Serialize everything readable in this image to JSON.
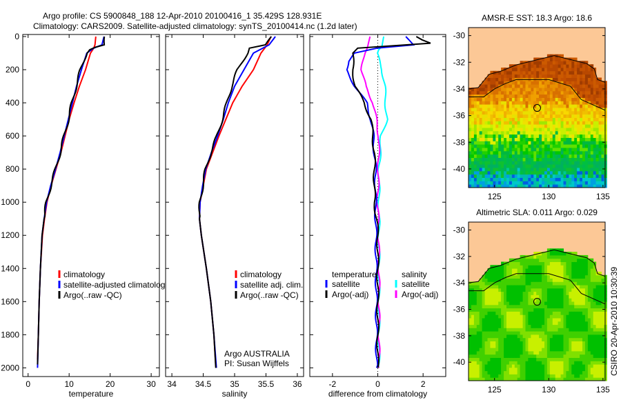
{
  "title_line1": "Argo profile: CS 5900848_188 12-Apr-2010 20100416_1 35.429S 128.931E",
  "title_line2": "Climatology: CARS2009. Satellite-adjusted climatology: synTS_20100414.nc (1.2d later)",
  "credit": "CSIRO 20-Apr-2010 10:30:39",
  "colors": {
    "red": "#ff0000",
    "blue": "#0000ff",
    "black": "#000000",
    "cyan": "#00ffff",
    "magenta": "#ff00ff",
    "land": "#fcc896"
  },
  "chart_data": [
    {
      "type": "line",
      "xlabel": "temperature",
      "xlim": [
        -1.3,
        32
      ],
      "xticks": [
        0,
        10,
        20,
        30
      ],
      "ylim": [
        0,
        2065
      ],
      "yticks": [
        0,
        200,
        400,
        600,
        800,
        1000,
        1200,
        1400,
        1600,
        1800,
        2000
      ],
      "y_reversed": true,
      "legend": [
        "climatology",
        "satellite-adjusted climatology",
        "Argo(..raw -QC)"
      ],
      "series": [
        {
          "name": "climatology",
          "color": "#ff0000",
          "depth": [
            0,
            50,
            70,
            100,
            200,
            300,
            400,
            500,
            600,
            700,
            800,
            900,
            1000,
            1100,
            1200,
            1400,
            1600,
            1800,
            1950
          ],
          "values": [
            16.5,
            16.3,
            16,
            15.2,
            14,
            12.5,
            11.2,
            10,
            9,
            8,
            6.8,
            5.6,
            4.6,
            4,
            3.5,
            3,
            2.7,
            2.5,
            2.3
          ]
        },
        {
          "name": "satellite-adjusted climatology",
          "color": "#0000ff",
          "depth": [
            0,
            50,
            70,
            100,
            200,
            300,
            400,
            500,
            600,
            700,
            800,
            900,
            1000,
            1100,
            1200,
            1400,
            1600,
            1800,
            2000
          ],
          "values": [
            18.5,
            18,
            16,
            14.3,
            13,
            11.8,
            10.8,
            9.8,
            8.8,
            7.8,
            6.7,
            5.5,
            4.5,
            3.9,
            3.4,
            3,
            2.7,
            2.5,
            2.3
          ]
        },
        {
          "name": "Argo(..raw -QC)",
          "color": "#000000",
          "depth": [
            0,
            50,
            65,
            80,
            100,
            200,
            300,
            400,
            500,
            600,
            700,
            800,
            900,
            1000,
            1100,
            1200,
            1400,
            1600,
            1800,
            1980
          ],
          "values": [
            18.8,
            18.7,
            16.5,
            15.2,
            14.2,
            12.8,
            11.7,
            10.7,
            9.8,
            8.8,
            7.8,
            6.7,
            5.5,
            4.5,
            3.9,
            3.4,
            3,
            2.7,
            2.5,
            2.3
          ]
        }
      ]
    },
    {
      "type": "line",
      "xlabel": "salinity",
      "xlim": [
        33.9,
        36.1
      ],
      "xticks": [
        34,
        34.5,
        35,
        35.5,
        36
      ],
      "ylim": [
        0,
        2065
      ],
      "y_reversed": true,
      "legend": [
        "climatology",
        "satellite adj. clim.",
        "Argo(..raw -QC)"
      ],
      "annotation": [
        "Argo AUSTRALIA",
        "PI: Susan Wijffels"
      ],
      "series": [
        {
          "name": "climatology",
          "color": "#ff0000",
          "depth": [
            0,
            50,
            100,
            200,
            300,
            400,
            500,
            600,
            700,
            800,
            900,
            1000,
            1100,
            1200,
            1400,
            1600,
            1800,
            1990
          ],
          "values": [
            35.58,
            35.52,
            35.42,
            35.3,
            35.12,
            34.97,
            34.86,
            34.75,
            34.65,
            34.55,
            34.5,
            34.45,
            34.44,
            34.47,
            34.55,
            34.62,
            34.67,
            34.7
          ]
        },
        {
          "name": "satellite adj. clim.",
          "color": "#0000ff",
          "depth": [
            0,
            50,
            100,
            200,
            300,
            400,
            500,
            600,
            700,
            800,
            900,
            1000,
            1100,
            1200,
            1400,
            1600,
            1800,
            2000
          ],
          "values": [
            35.65,
            35.55,
            35.3,
            35.15,
            35.0,
            34.9,
            34.82,
            34.73,
            34.63,
            34.54,
            34.49,
            34.45,
            34.44,
            34.47,
            34.55,
            34.62,
            34.67,
            34.71
          ]
        },
        {
          "name": "Argo(..raw -QC)",
          "color": "#000000",
          "depth": [
            0,
            50,
            70,
            100,
            200,
            300,
            400,
            500,
            600,
            700,
            800,
            900,
            1000,
            1100,
            1200,
            1400,
            1600,
            1800,
            2000
          ],
          "values": [
            35.6,
            35.5,
            35.22,
            35.2,
            35.05,
            34.95,
            34.88,
            34.8,
            34.72,
            34.62,
            34.54,
            34.49,
            34.45,
            34.44,
            34.47,
            34.55,
            34.62,
            34.67,
            34.7
          ]
        }
      ]
    },
    {
      "type": "line",
      "xlabel": "difference from climatology",
      "xlim": [
        -3,
        3
      ],
      "xticks": [
        -2,
        0,
        2
      ],
      "ylim": [
        0,
        2065
      ],
      "y_reversed": true,
      "legend_left": {
        "title": "temperature",
        "items": [
          "satellite",
          "Argo(-adj)"
        ]
      },
      "legend_right": {
        "title": "salinity",
        "items": [
          "satellite",
          "Argo(-adj)"
        ]
      },
      "series": [
        {
          "name": "temperature satellite",
          "color": "#0000ff",
          "depth": [
            0,
            50,
            70,
            100,
            150,
            200,
            300,
            400,
            500,
            600,
            800,
            1000,
            1200,
            1600,
            2000
          ],
          "values": [
            1.2,
            1.6,
            0.0,
            -1.0,
            -1.3,
            -1.4,
            -1.0,
            -0.5,
            -0.3,
            -0.2,
            -0.1,
            -0.1,
            -0.08,
            -0.06,
            -0.05
          ]
        },
        {
          "name": "temperature Argo(-adj)",
          "color": "#000000",
          "depth": [
            0,
            40,
            70,
            100,
            200,
            300,
            400,
            500,
            700,
            1000,
            1100,
            1200,
            1600,
            2000
          ],
          "values": [
            1.7,
            2.3,
            -0.9,
            -1.1,
            -1.1,
            -1.0,
            -0.6,
            -0.3,
            -0.15,
            -0.15,
            -0.05,
            0,
            0,
            0
          ]
        },
        {
          "name": "salinity satellite",
          "color": "#00ffff",
          "depth": [
            0,
            60,
            100,
            200,
            300,
            400,
            500,
            600,
            800,
            1000,
            1400,
            2000
          ],
          "values": [
            0.3,
            0.2,
            -0.05,
            0.2,
            0.3,
            0.35,
            0.4,
            0.15,
            0.05,
            0.05,
            0.05,
            0.05
          ]
        },
        {
          "name": "salinity Argo(-adj)",
          "color": "#ff00ff",
          "depth": [
            0,
            60,
            100,
            200,
            300,
            400,
            600,
            1000,
            1400,
            2000
          ],
          "values": [
            -0.3,
            -0.4,
            -0.6,
            -0.7,
            -0.55,
            -0.2,
            0.05,
            0.0,
            0.05,
            0.05
          ]
        }
      ]
    },
    {
      "type": "heatmap",
      "title": "AMSR-E SST: 18.3 Argo: 18.6",
      "lon_range": [
        122.6,
        135.2
      ],
      "lat_range": [
        -41.4,
        -29.4
      ],
      "xticks": [
        125,
        130,
        135
      ],
      "yticks": [
        -30,
        -32,
        -34,
        -36,
        -38,
        -40
      ],
      "profile_location": {
        "lon": 128.931,
        "lat": -35.429
      }
    },
    {
      "type": "heatmap",
      "title": "Altimetric SLA: 0.011 Argo: 0.029",
      "lon_range": [
        122.6,
        135.2
      ],
      "lat_range": [
        -41.4,
        -29.4
      ],
      "xticks": [
        125,
        130,
        135
      ],
      "yticks": [
        -30,
        -32,
        -34,
        -36,
        -38,
        -40
      ],
      "profile_location": {
        "lon": 128.931,
        "lat": -35.429
      }
    }
  ]
}
